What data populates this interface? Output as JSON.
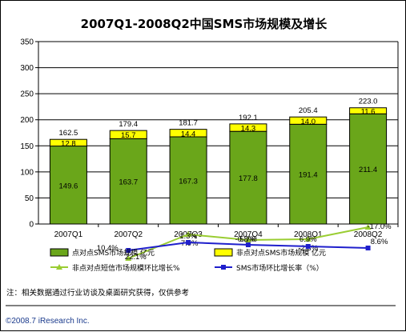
{
  "title": "2007Q1-2008Q2中国SMS市场规模及增长",
  "note": "注：相关数据通过行业访谈及桌面研究获得，仅供参考",
  "copyright": "©2008.7 iResearch Inc.",
  "colors": {
    "p2p_bar": "#6aa61a",
    "non_p2p_bar": "#ffff00",
    "p2p_growth_line": "#9acd32",
    "sms_growth_line": "#1f1fcc"
  },
  "chart_data": {
    "type": "bar",
    "stacked": true,
    "categories": [
      "2007Q1",
      "2007Q2",
      "2007Q3",
      "2007Q4",
      "2008Q1",
      "2008Q2"
    ],
    "ylim": [
      0,
      350
    ],
    "yticks": [
      0,
      50,
      100,
      150,
      200,
      250,
      300,
      350
    ],
    "grid": true,
    "legend_placement": "bottom",
    "series": [
      {
        "name": "点对点SMS市场规模 亿元",
        "kind": "bar",
        "values": [
          149.6,
          163.7,
          167.3,
          177.8,
          191.4,
          211.4
        ],
        "labels": [
          "149.6",
          "163.7",
          "167.3",
          "177.8",
          "191.4",
          "211.4"
        ]
      },
      {
        "name": "非点对点SMS市场规模 亿元",
        "kind": "bar",
        "values": [
          12.8,
          15.7,
          14.4,
          14.3,
          14.0,
          11.6
        ],
        "labels": [
          "12.8",
          "15.7",
          "14.4",
          "14.3",
          "14.0",
          "11.6"
        ]
      },
      {
        "name": "非点对点短信市场规模环比增长%",
        "kind": "line",
        "x": [
          "2007Q2",
          "2007Q3",
          "2007Q4",
          "2008Q1",
          "2008Q2"
        ],
        "values": [
          22.1,
          -7.9,
          -0.8,
          -2.3,
          -17.0
        ],
        "labels": [
          "22.1%",
          "-7.9%",
          "-0.8%",
          "-2.3%",
          "-17.0%"
        ],
        "plot_y": [
          322,
          292,
          299,
          298,
          283
        ]
      },
      {
        "name": "SMS市场环比增长率（%）",
        "kind": "line",
        "x": [
          "2007Q2",
          "2007Q3",
          "2007Q4",
          "2008Q1",
          "2008Q2"
        ],
        "values": [
          10.4,
          1.3,
          5.7,
          6.9,
          8.6
        ],
        "labels": [
          "10.4%",
          "1.3%",
          "5.7%",
          "6.9%",
          "8.6%"
        ],
        "plot_y": [
          312,
          302,
          305,
          307,
          309
        ]
      }
    ],
    "totals": [
      162.5,
      179.4,
      181.7,
      192.1,
      205.4,
      223.0
    ],
    "total_labels": [
      "162.5",
      "179.4",
      "181.7",
      "192.1",
      "205.4",
      "223.0"
    ]
  }
}
